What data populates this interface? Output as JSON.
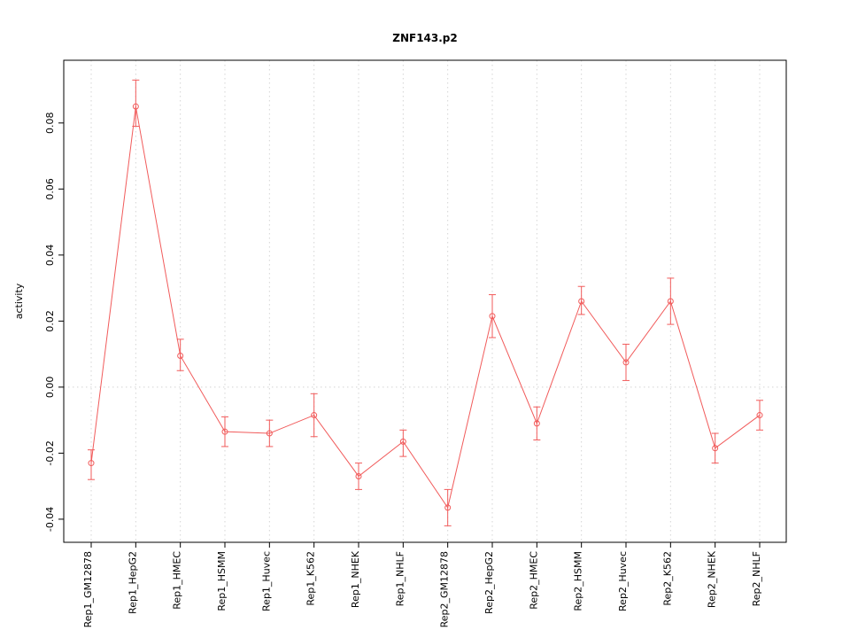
{
  "chart_data": {
    "type": "line",
    "title": "ZNF143.p2",
    "xlabel": "",
    "ylabel": "activity",
    "categories": [
      "Rep1_GM12878",
      "Rep1_HepG2",
      "Rep1_HMEC",
      "Rep1_HSMM",
      "Rep1_Huvec",
      "Rep1_K562",
      "Rep1_NHEK",
      "Rep1_NHLF",
      "Rep2_GM12878",
      "Rep2_HepG2",
      "Rep2_HMEC",
      "Rep2_HSMM",
      "Rep2_Huvec",
      "Rep2_K562",
      "Rep2_NHEK",
      "Rep2_NHLF"
    ],
    "series": [
      {
        "name": "activity",
        "values": [
          -0.023,
          0.085,
          0.0095,
          -0.0135,
          -0.014,
          -0.0085,
          -0.027,
          -0.0165,
          -0.0365,
          0.0215,
          -0.011,
          0.026,
          0.0075,
          0.026,
          -0.0185,
          -0.0085
        ],
        "err_lo": [
          -0.028,
          0.079,
          0.005,
          -0.018,
          -0.018,
          -0.015,
          -0.031,
          -0.021,
          -0.042,
          0.015,
          -0.016,
          0.022,
          0.002,
          0.019,
          -0.023,
          -0.013
        ],
        "err_hi": [
          -0.019,
          0.093,
          0.0145,
          -0.009,
          -0.01,
          -0.002,
          -0.023,
          -0.013,
          -0.031,
          0.028,
          -0.006,
          0.0305,
          0.013,
          0.033,
          -0.014,
          -0.004
        ]
      }
    ],
    "yticks": [
      -0.04,
      -0.02,
      0.0,
      0.02,
      0.04,
      0.06,
      0.08
    ],
    "ylim": [
      -0.047,
      0.099
    ],
    "grid": true,
    "legend": "none",
    "line_color": "#f15b5b",
    "grid_color": "#d4d4d4",
    "axis_color": "#000000"
  }
}
